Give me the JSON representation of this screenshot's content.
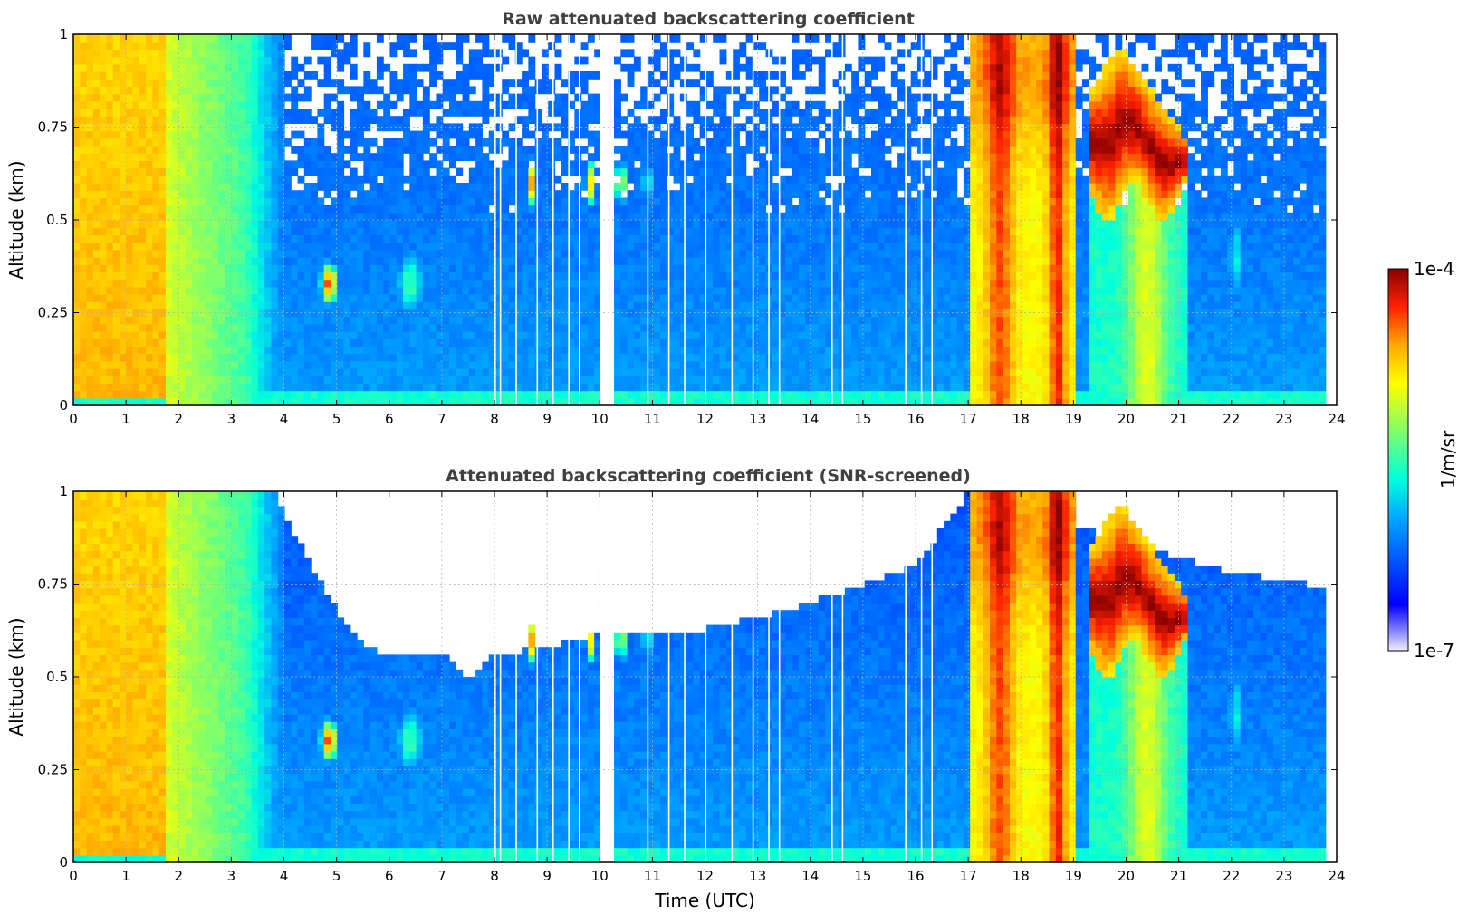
{
  "chart_data": [
    {
      "type": "heatmap",
      "title": "Raw attenuated backscattering coefficient",
      "xlabel": "",
      "ylabel": "Altitude (km)",
      "xlim": [
        0,
        24
      ],
      "ylim": [
        0,
        1
      ],
      "xticks": [
        "0",
        "1",
        "2",
        "3",
        "4",
        "5",
        "6",
        "7",
        "8",
        "9",
        "10",
        "11",
        "12",
        "13",
        "14",
        "15",
        "16",
        "17",
        "18",
        "19",
        "20",
        "21",
        "22",
        "23",
        "24"
      ],
      "yticks": [
        "0",
        "0.25",
        "0.5",
        "0.75",
        "1"
      ],
      "grid": true,
      "screened": false,
      "data_gap": [
        10.0,
        10.25
      ],
      "features": [
        {
          "label": "near-surface aerosol layer",
          "time_start": 0,
          "time_end": 4,
          "alt_top": 1.0,
          "log10_value": -4.8
        },
        {
          "label": "small cloud",
          "time_start": 4.65,
          "time_end": 5.1,
          "alt_bottom": 0.25,
          "alt_top": 0.4,
          "log10_value": -4.4
        },
        {
          "label": "thick cloud",
          "time_start": 17.0,
          "time_end": 19.0,
          "alt_top": 1.0,
          "log10_value": -4.3
        },
        {
          "label": "elevated cloud",
          "time_start": 19.3,
          "time_end": 21.2,
          "alt_bottom": 0.55,
          "alt_top": 0.97,
          "log10_value": -4.0
        }
      ]
    },
    {
      "type": "heatmap",
      "title": "Attenuated backscattering coefficient (SNR-screened)",
      "xlabel": "Time (UTC)",
      "ylabel": "Altitude (km)",
      "xlim": [
        0,
        24
      ],
      "ylim": [
        0,
        1
      ],
      "xticks": [
        "0",
        "1",
        "2",
        "3",
        "4",
        "5",
        "6",
        "7",
        "8",
        "9",
        "10",
        "11",
        "12",
        "13",
        "14",
        "15",
        "16",
        "17",
        "18",
        "19",
        "20",
        "21",
        "22",
        "23",
        "24"
      ],
      "yticks": [
        "0",
        "0.25",
        "0.5",
        "0.75",
        "1"
      ],
      "grid": true,
      "screened": true,
      "data_gap": [
        10.0,
        10.25
      ],
      "screen_boundary": {
        "time": [
          3.8,
          4.5,
          5.0,
          5.5,
          6.0,
          7.0,
          7.5,
          8.0,
          9.0,
          10.0,
          11.0,
          12.0,
          13.0,
          14.0,
          15.0,
          16.0,
          17.0,
          21.5,
          22.0,
          23.0,
          23.8
        ],
        "alt": [
          1.0,
          0.8,
          0.68,
          0.58,
          0.56,
          0.57,
          0.5,
          0.56,
          0.58,
          0.62,
          0.62,
          0.63,
          0.66,
          0.7,
          0.75,
          0.8,
          1.0,
          0.8,
          0.78,
          0.76,
          0.74
        ]
      }
    }
  ],
  "colorbar": {
    "max_label": "1e-4",
    "min_label": "1e-7",
    "unit_label": "1/m/sr",
    "colormap": "jet",
    "scale": "log"
  }
}
